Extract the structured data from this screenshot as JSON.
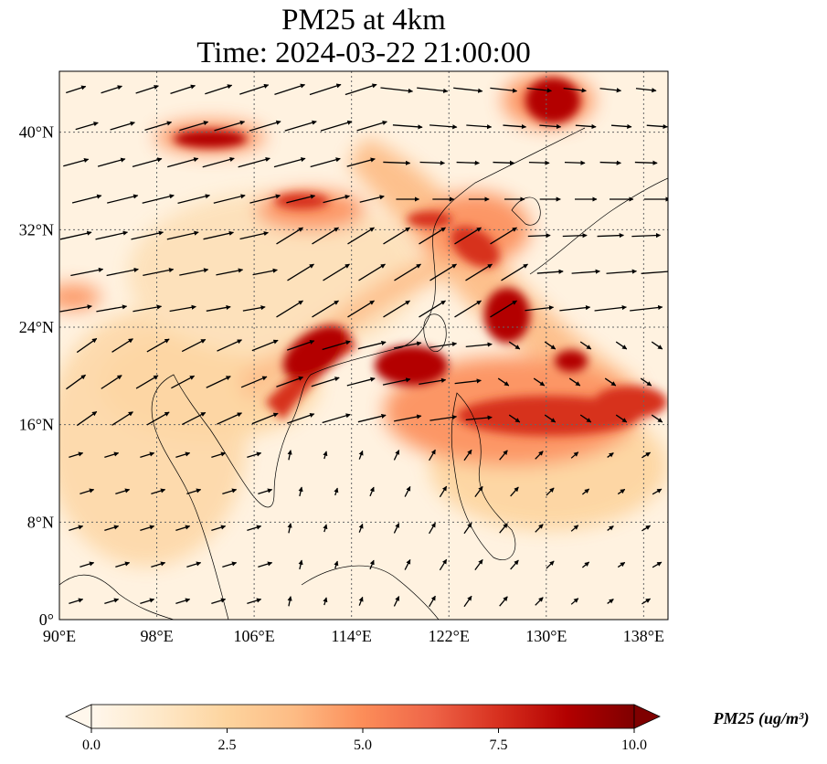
{
  "title": {
    "line1": "PM25 at 4km",
    "line2": "Time: 2024-03-22 21:00:00"
  },
  "map": {
    "lon_range": [
      90,
      140
    ],
    "lat_range": [
      0,
      45
    ],
    "lon_ticks": [
      "90°E",
      "98°E",
      "106°E",
      "114°E",
      "122°E",
      "130°E",
      "138°E"
    ],
    "lon_tick_values": [
      90,
      98,
      106,
      114,
      122,
      130,
      138
    ],
    "lat_ticks": [
      "0°",
      "8°N",
      "16°N",
      "24°N",
      "32°N",
      "40°N"
    ],
    "lat_tick_values": [
      0,
      8,
      16,
      24,
      32,
      40
    ],
    "gridlines": "dotted",
    "wind_vectors": "shown"
  },
  "colorbar": {
    "label": "PM25 (ug/m³)",
    "ticks": [
      "0.0",
      "2.5",
      "5.0",
      "7.5",
      "10.0"
    ],
    "tick_values": [
      0,
      2.5,
      5,
      7.5,
      10
    ],
    "colormap": "OrRd",
    "extend": "both",
    "colors": [
      "#fff7ec",
      "#fee8c8",
      "#fdd49e",
      "#fdbb84",
      "#fc8d59",
      "#ef6548",
      "#d7301f",
      "#b30000",
      "#7f0000"
    ]
  }
}
